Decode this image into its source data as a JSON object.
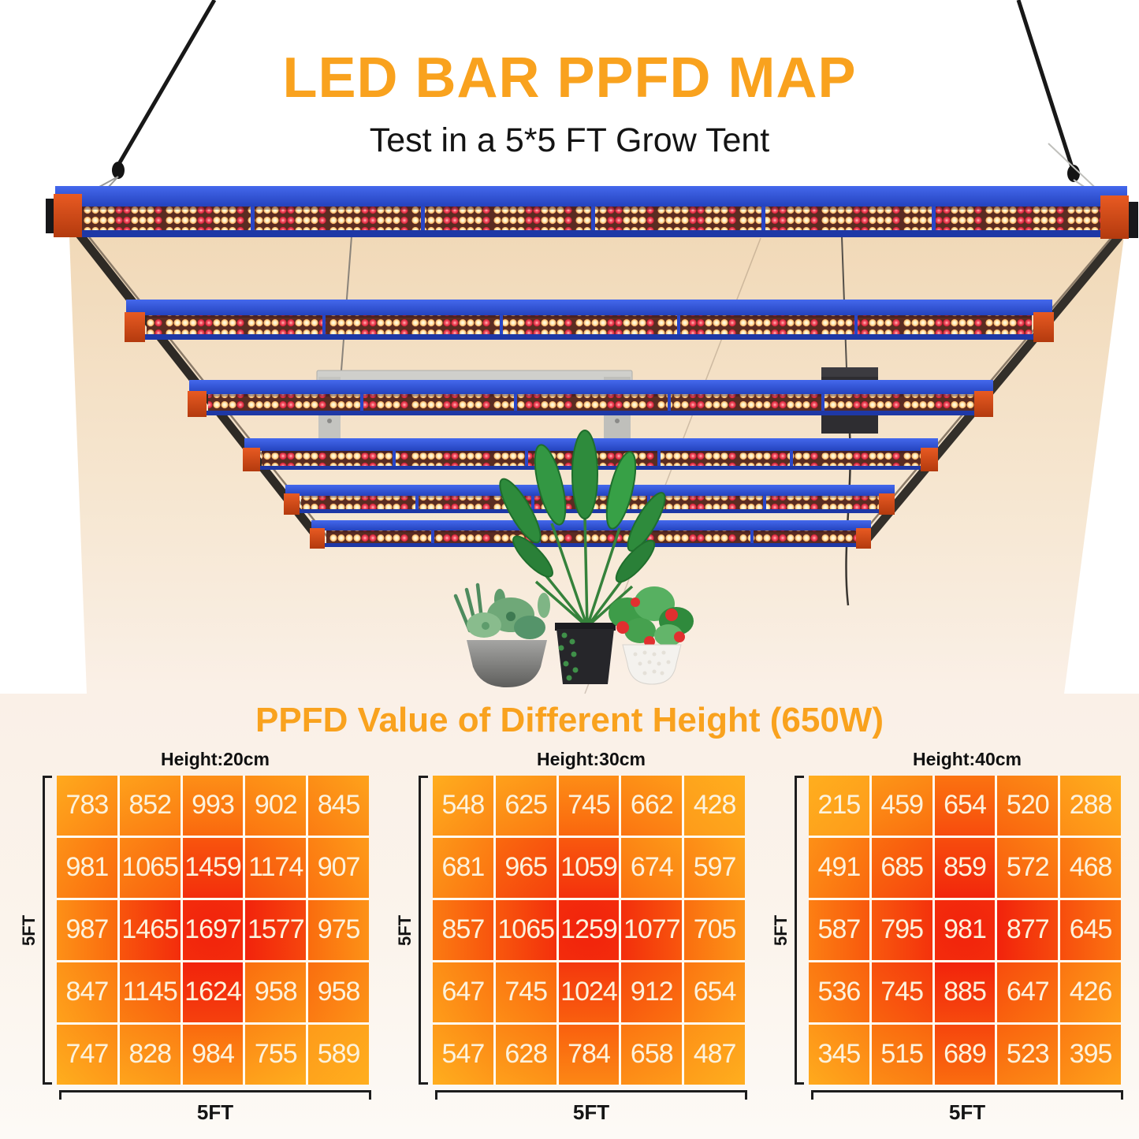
{
  "header": {
    "title": "LED BAR PPFD MAP",
    "subtitle": "Test in a 5*5 FT Grow Tent"
  },
  "section": {
    "title": "PPFD Value of Different Height (650W)"
  },
  "hero": {
    "icons": [
      "led-grow-light-6-bars",
      "hanging-cable",
      "succulent-plant",
      "banana-leaf-plant",
      "strawberry-plant"
    ]
  },
  "colors": {
    "accent_orange": "#F9A21E",
    "text_black": "#141414",
    "heat_low": "#FFAE1E",
    "heat_mid": "#FA6A0E",
    "heat_high": "#F2230C",
    "grid_line": "#FFFAEF",
    "cell_text": "#FCF2DC",
    "bar_blue": "#2B49C8",
    "end_cap_red": "#D84A18",
    "glow_beige": "#F2DBBB",
    "section_bg": "#FAF0E7"
  },
  "chart_data": [
    {
      "type": "heatmap",
      "title": "Height:20cm",
      "x_axis_label": "5FT",
      "y_axis_label": "5FT",
      "rows": 5,
      "cols": 5,
      "values": [
        [
          783,
          852,
          993,
          902,
          845
        ],
        [
          981,
          1065,
          1459,
          1174,
          907
        ],
        [
          987,
          1465,
          1697,
          1577,
          975
        ],
        [
          847,
          1145,
          1624,
          958,
          958
        ],
        [
          747,
          828,
          984,
          755,
          589
        ]
      ]
    },
    {
      "type": "heatmap",
      "title": "Height:30cm",
      "x_axis_label": "5FT",
      "y_axis_label": "5FT",
      "rows": 5,
      "cols": 5,
      "values": [
        [
          548,
          625,
          745,
          662,
          428
        ],
        [
          681,
          965,
          1059,
          674,
          597
        ],
        [
          857,
          1065,
          1259,
          1077,
          705
        ],
        [
          647,
          745,
          1024,
          912,
          654
        ],
        [
          547,
          628,
          784,
          658,
          487
        ]
      ]
    },
    {
      "type": "heatmap",
      "title": "Height:40cm",
      "x_axis_label": "5FT",
      "y_axis_label": "5FT",
      "rows": 5,
      "cols": 5,
      "values": [
        [
          215,
          459,
          654,
          520,
          288
        ],
        [
          491,
          685,
          859,
          572,
          468
        ],
        [
          587,
          795,
          981,
          877,
          645
        ],
        [
          536,
          745,
          885,
          647,
          426
        ],
        [
          345,
          515,
          689,
          523,
          395
        ]
      ]
    }
  ]
}
